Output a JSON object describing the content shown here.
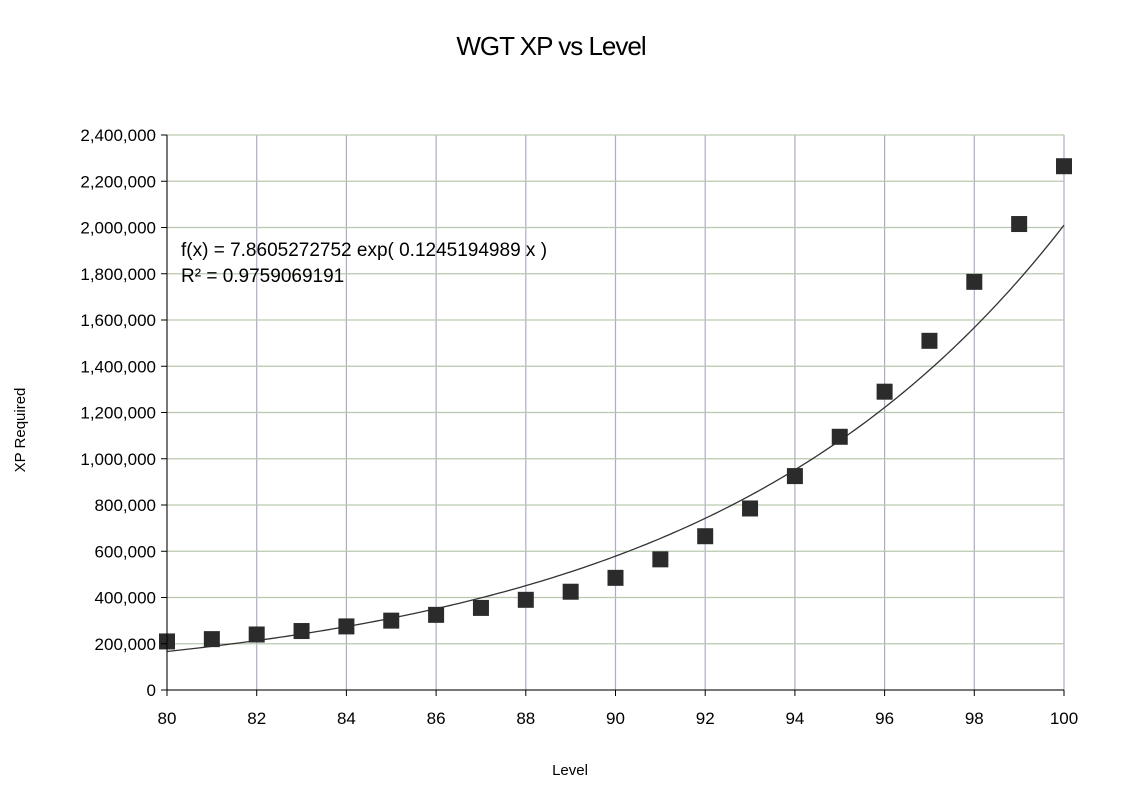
{
  "chart_data": {
    "type": "scatter",
    "title": "WGT XP vs Level",
    "xlabel": "Level",
    "ylabel": "XP Required",
    "xlim": [
      80,
      100
    ],
    "ylim": [
      0,
      2400000
    ],
    "x_ticks": [
      80,
      82,
      84,
      86,
      88,
      90,
      92,
      94,
      96,
      98,
      100
    ],
    "y_ticks": [
      0,
      200000,
      400000,
      600000,
      800000,
      1000000,
      1200000,
      1400000,
      1600000,
      1800000,
      2000000,
      2200000,
      2400000
    ],
    "x_tick_labels": [
      "80",
      "82",
      "84",
      "86",
      "88",
      "90",
      "92",
      "94",
      "96",
      "98",
      "100"
    ],
    "y_tick_labels": [
      "0",
      "200,000",
      "400,000",
      "600,000",
      "800,000",
      "1,000,000",
      "1,200,000",
      "1,400,000",
      "1,600,000",
      "1,800,000",
      "2,000,000",
      "2,200,000",
      "2,400,000"
    ],
    "grid": true,
    "legend": "none",
    "series": [
      {
        "marker": "square",
        "color": "#2b2b2b",
        "x": [
          80,
          81,
          82,
          83,
          84,
          85,
          86,
          87,
          88,
          89,
          90,
          91,
          92,
          93,
          94,
          95,
          96,
          97,
          98,
          99,
          100
        ],
        "y": [
          210000,
          220000,
          240000,
          255000,
          275000,
          300000,
          325000,
          355000,
          390000,
          425000,
          485000,
          565000,
          665000,
          785000,
          925000,
          1095000,
          1290000,
          1510000,
          1765000,
          2015000,
          2265000
        ]
      }
    ],
    "trendline": {
      "type": "exponential",
      "a": 7.8605272752,
      "b": 0.1245194989,
      "color": "#333333",
      "equation_label": "f(x) = 7.8605272752 exp( 0.1245194989 x )",
      "r2_label": "R² = 0.9759069191"
    },
    "colors": {
      "grid_vertical": "#b4a8c4",
      "grid_horizontal": "#b9c9b0",
      "axis": "#000000"
    }
  }
}
